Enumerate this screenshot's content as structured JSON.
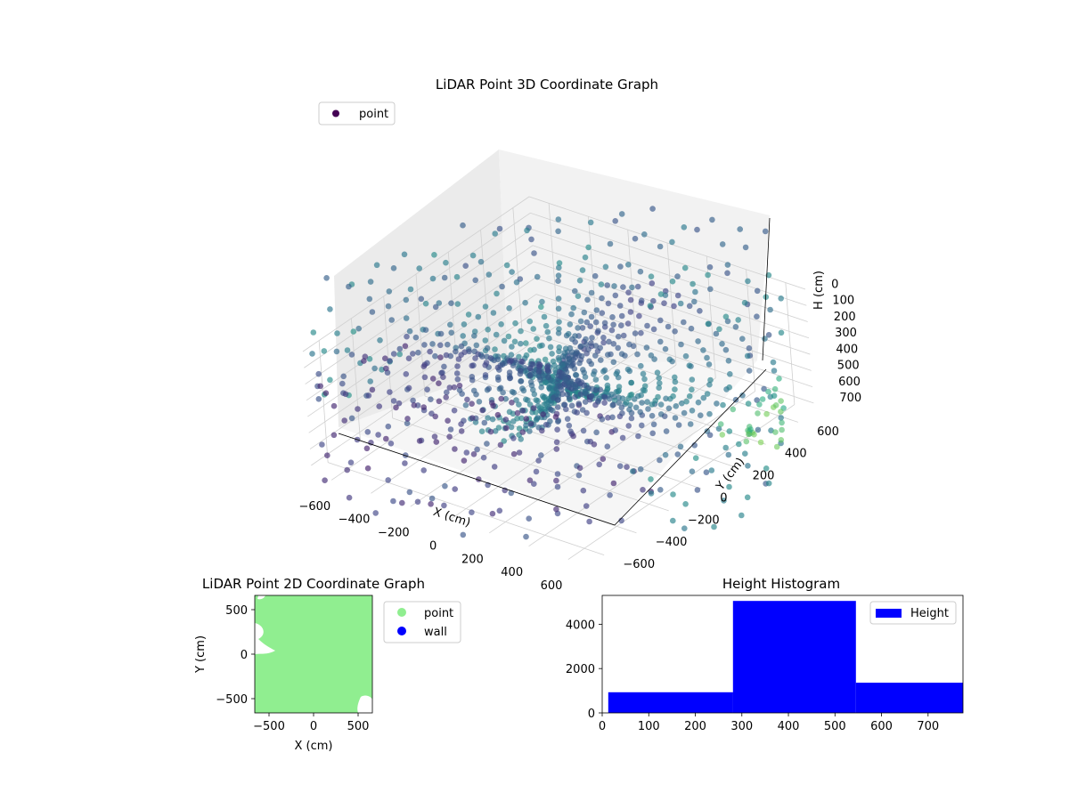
{
  "chart_data": [
    {
      "type": "scatter",
      "projection": "3d",
      "title": "LiDAR Point 3D Coordinate Graph",
      "xlabel": "X (cm)",
      "ylabel": "Y (cm)",
      "zlabel": "H (cm)",
      "xlim": [
        -700,
        700
      ],
      "ylim": [
        -700,
        700
      ],
      "zlim": [
        750,
        0
      ],
      "x_ticks": [
        -600,
        -400,
        -200,
        0,
        200,
        400,
        600
      ],
      "y_ticks": [
        -600,
        -400,
        -200,
        0,
        200,
        400,
        600
      ],
      "z_ticks": [
        0,
        100,
        200,
        300,
        400,
        500,
        600,
        700
      ],
      "legend": {
        "placement": "upper-left",
        "entries": [
          "point"
        ]
      },
      "colormap": "viridis",
      "grid": true,
      "series": [
        {
          "name": "point",
          "color": "#440154",
          "description_points": "radial LiDAR beams around origin; heights mostly 300-500 cm"
        }
      ]
    },
    {
      "type": "scatter",
      "title": "LiDAR Point 2D Coordinate Graph",
      "xlabel": "X (cm)",
      "ylabel": "Y (cm)",
      "xlim": [
        -660,
        660
      ],
      "ylim": [
        -660,
        660
      ],
      "x_ticks": [
        -500,
        0,
        500
      ],
      "y_ticks": [
        -500,
        0,
        500
      ],
      "legend": {
        "placement": "outside-right",
        "entries": [
          "point",
          "wall"
        ]
      },
      "series": [
        {
          "name": "point",
          "color": "#90ee90"
        },
        {
          "name": "wall",
          "color": "#0000ff"
        }
      ]
    },
    {
      "type": "bar",
      "title": "Height Histogram",
      "xlim": [
        0,
        775
      ],
      "ylim": [
        0,
        5300
      ],
      "x_ticks": [
        0,
        100,
        200,
        300,
        400,
        500,
        600,
        700
      ],
      "y_ticks": [
        0,
        2000,
        4000
      ],
      "legend": {
        "placement": "top-right",
        "entries": [
          "Height"
        ]
      },
      "bins": [
        {
          "from": 13,
          "to": 281,
          "count": 930
        },
        {
          "from": 281,
          "to": 545,
          "count": 5050
        },
        {
          "from": 545,
          "to": 775,
          "count": 1360
        }
      ],
      "series": [
        {
          "name": "Height",
          "color": "#0000ff"
        }
      ]
    }
  ]
}
